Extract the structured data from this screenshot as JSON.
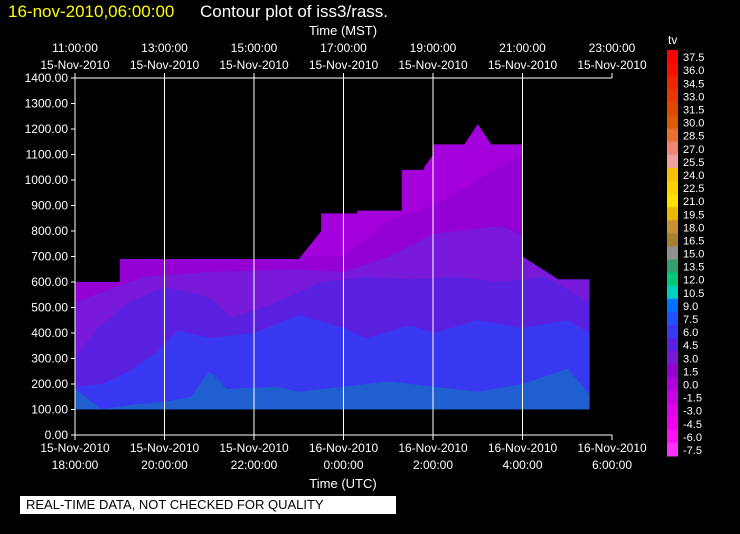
{
  "header": {
    "date_time": "16-nov-2010,06:00:00",
    "title": "Contour plot of iss3/rass."
  },
  "footer": {
    "disclaimer": "REAL-TIME DATA, NOT CHECKED FOR QUALITY"
  },
  "chart_data": {
    "type": "heatmap",
    "title": "Contour plot of iss3/rass.",
    "xlabel_top": "Time (MST)",
    "xlabel_bottom": "Time (UTC)",
    "ylabel": "",
    "ylim": [
      0,
      1400
    ],
    "y_ticks": [
      "0.00",
      "100.00",
      "200.00",
      "300.00",
      "400.00",
      "500.00",
      "600.00",
      "700.00",
      "800.00",
      "900.00",
      "1000.00",
      "1100.00",
      "1200.00",
      "1300.00",
      "1400.00"
    ],
    "x_range_utc": [
      "2010-11-15 18:00",
      "2010-11-16 06:00"
    ],
    "x_ticks_utc": [
      {
        "t": "2010-11-15 18:00",
        "date": "15-Nov-2010",
        "time": "18:00:00"
      },
      {
        "t": "2010-11-15 20:00",
        "date": "15-Nov-2010",
        "time": "20:00:00"
      },
      {
        "t": "2010-11-15 22:00",
        "date": "15-Nov-2010",
        "time": "22:00:00"
      },
      {
        "t": "2010-11-16 00:00",
        "date": "16-Nov-2010",
        "time": "0:00:00"
      },
      {
        "t": "2010-11-16 02:00",
        "date": "16-Nov-2010",
        "time": "2:00:00"
      },
      {
        "t": "2010-11-16 04:00",
        "date": "16-Nov-2010",
        "time": "4:00:00"
      },
      {
        "t": "2010-11-16 06:00",
        "date": "16-Nov-2010",
        "time": "6:00:00"
      }
    ],
    "x_ticks_mst": [
      {
        "t": "2010-11-15 18:00",
        "date": "15-Nov-2010",
        "time": "11:00:00"
      },
      {
        "t": "2010-11-15 20:00",
        "date": "15-Nov-2010",
        "time": "13:00:00"
      },
      {
        "t": "2010-11-15 22:00",
        "date": "15-Nov-2010",
        "time": "15:00:00"
      },
      {
        "t": "2010-11-16 00:00",
        "date": "15-Nov-2010",
        "time": "17:00:00"
      },
      {
        "t": "2010-11-16 02:00",
        "date": "15-Nov-2010",
        "time": "19:00:00"
      },
      {
        "t": "2010-11-16 04:00",
        "date": "15-Nov-2010",
        "time": "21:00:00"
      },
      {
        "t": "2010-11-16 06:00",
        "date": "15-Nov-2010",
        "time": "23:00:00"
      }
    ],
    "grid": true,
    "colorbar": {
      "label": "tv",
      "levels": [
        "37.5",
        "36.0",
        "34.5",
        "33.0",
        "31.5",
        "30.0",
        "28.5",
        "27.0",
        "25.5",
        "24.0",
        "22.5",
        "21.0",
        "19.5",
        "18.0",
        "16.5",
        "15.0",
        "13.5",
        "12.0",
        "10.5",
        "9.0",
        "7.5",
        "6.0",
        "4.5",
        "3.0",
        "1.5",
        "0.0",
        "-1.5",
        "-3.0",
        "-4.5",
        "-6.0",
        "-7.5"
      ],
      "colors": [
        "#ff0000",
        "#f51000",
        "#ef2500",
        "#e63800",
        "#e04800",
        "#de5a00",
        "#e87030",
        "#ee8870",
        "#f0a0a0",
        "#f8c000",
        "#ffd000",
        "#ffe000",
        "#e8b800",
        "#c89030",
        "#a88030",
        "#909090",
        "#30a070",
        "#00c878",
        "#00d0c0",
        "#0070ff",
        "#2050ff",
        "#3838f0",
        "#5a20e0",
        "#7818d8",
        "#9400d4",
        "#b000e0",
        "#c800e8",
        "#e000ee",
        "#f000f2",
        "#ff10f8",
        "#ff30ff"
      ]
    },
    "bands": [
      {
        "name": "6.0 to 7.5",
        "color": "#1f5fd0",
        "upper": [
          [
            0,
            180
          ],
          [
            0.6,
            100
          ],
          [
            1.3,
            120
          ],
          [
            2.0,
            130
          ],
          [
            2.6,
            150
          ],
          [
            3.0,
            250
          ],
          [
            3.4,
            180
          ],
          [
            4.5,
            190
          ],
          [
            5.0,
            170
          ],
          [
            6.0,
            190
          ],
          [
            7.0,
            210
          ],
          [
            8.0,
            190
          ],
          [
            9.0,
            170
          ],
          [
            10.0,
            200
          ],
          [
            11.0,
            260
          ],
          [
            11.5,
            160
          ]
        ]
      },
      {
        "name": "4.5 to 6.0",
        "color": "#3838f0",
        "upper": [
          [
            0,
            190
          ],
          [
            0.6,
            200
          ],
          [
            1.2,
            250
          ],
          [
            1.8,
            320
          ],
          [
            2.3,
            410
          ],
          [
            3.0,
            380
          ],
          [
            4.0,
            400
          ],
          [
            5.0,
            470
          ],
          [
            6.0,
            420
          ],
          [
            6.5,
            380
          ],
          [
            7.5,
            430
          ],
          [
            8.0,
            400
          ],
          [
            9.0,
            450
          ],
          [
            10.0,
            420
          ],
          [
            11.0,
            450
          ],
          [
            11.5,
            400
          ]
        ]
      },
      {
        "name": "3.0 to 4.5",
        "color": "#5a20e0",
        "upper": [
          [
            0,
            300
          ],
          [
            0.5,
            420
          ],
          [
            1.2,
            520
          ],
          [
            2.0,
            580
          ],
          [
            3.0,
            540
          ],
          [
            3.5,
            460
          ],
          [
            4.5,
            520
          ],
          [
            5.5,
            600
          ],
          [
            6.5,
            620
          ],
          [
            7.5,
            610
          ],
          [
            8.5,
            620
          ],
          [
            9.5,
            600
          ],
          [
            10.5,
            620
          ],
          [
            11.5,
            520
          ]
        ]
      },
      {
        "name": "1.5 to 3.0",
        "color": "#7818d8",
        "upper": [
          [
            0,
            520
          ],
          [
            1.5,
            620
          ],
          [
            3.0,
            640
          ],
          [
            5.0,
            650
          ],
          [
            6.0,
            640
          ],
          [
            7.0,
            700
          ],
          [
            8.0,
            790
          ],
          [
            9.5,
            820
          ],
          [
            10.5,
            750
          ],
          [
            11.5,
            620
          ]
        ]
      },
      {
        "name": "0.0 to 1.5",
        "color": "#9400d4",
        "upper": [
          [
            0,
            700
          ],
          [
            6.0,
            700
          ],
          [
            7.0,
            840
          ],
          [
            8.0,
            900
          ],
          [
            9.0,
            1000
          ],
          [
            10.0,
            1100
          ],
          [
            11.5,
            700
          ]
        ]
      }
    ],
    "coverage_outline": [
      [
        0,
        100
      ],
      [
        11.5,
        100
      ],
      [
        11.5,
        610
      ],
      [
        10.8,
        610
      ],
      [
        10.0,
        700
      ],
      [
        10.0,
        1140
      ],
      [
        9.3,
        1140
      ],
      [
        9.0,
        1220
      ],
      [
        8.7,
        1140
      ],
      [
        8.0,
        1140
      ],
      [
        8.0,
        1100
      ],
      [
        7.8,
        1050
      ],
      [
        7.8,
        1040
      ],
      [
        7.3,
        1040
      ],
      [
        7.3,
        880
      ],
      [
        6.3,
        880
      ],
      [
        6.3,
        870
      ],
      [
        5.5,
        870
      ],
      [
        5.5,
        800
      ],
      [
        5.0,
        690
      ],
      [
        1.0,
        690
      ],
      [
        1.0,
        600
      ],
      [
        0,
        600
      ]
    ]
  }
}
